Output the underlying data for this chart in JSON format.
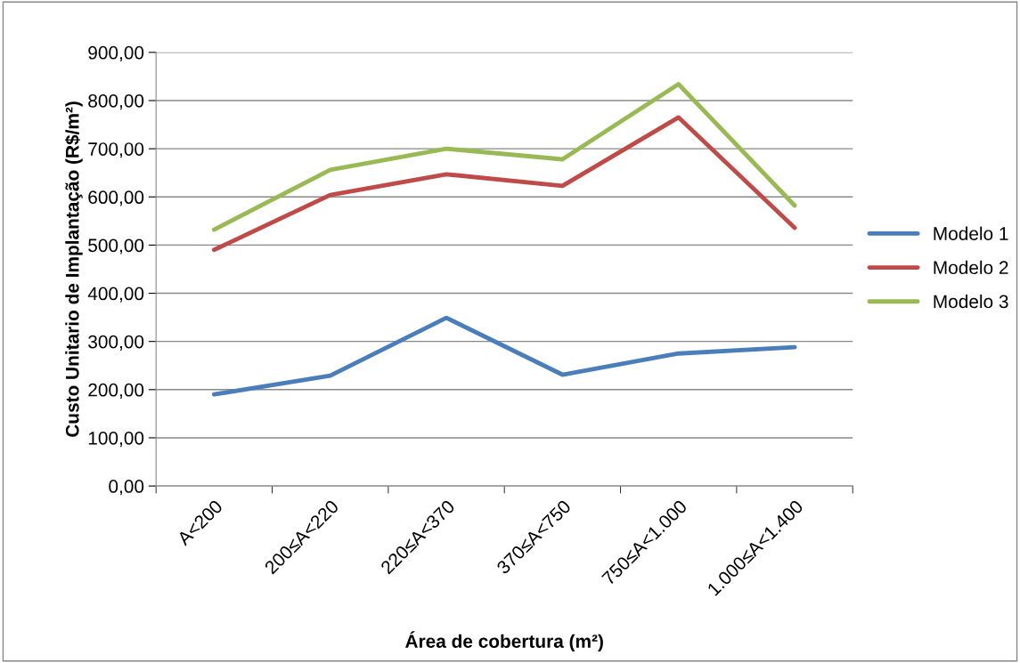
{
  "chart_data": {
    "type": "line",
    "xlabel": "Área de cobertura (m²)",
    "ylabel": "Custo Unitario de Implantação (R$/m²)",
    "categories": [
      "A<200",
      "200≤A<220",
      "220≤A<370",
      "370≤A<750",
      "750≤A<1.000",
      "1.000≤A<1.400"
    ],
    "series": [
      {
        "name": "Modelo 1",
        "color": "#4a7ebb",
        "values": [
          190,
          229,
          349,
          231,
          275,
          288
        ]
      },
      {
        "name": "Modelo 2",
        "color": "#be4b48",
        "values": [
          490,
          604,
          647,
          623,
          765,
          536
        ]
      },
      {
        "name": "Modelo 3",
        "color": "#98b954",
        "values": [
          532,
          656,
          700,
          678,
          834,
          582
        ]
      }
    ],
    "ylim": [
      0,
      900
    ],
    "yticks": [
      {
        "value": 0,
        "label": "0,00"
      },
      {
        "value": 100,
        "label": "100,00"
      },
      {
        "value": 200,
        "label": "200,00"
      },
      {
        "value": 300,
        "label": "300,00"
      },
      {
        "value": 400,
        "label": "400,00"
      },
      {
        "value": 500,
        "label": "500,00"
      },
      {
        "value": 600,
        "label": "600,00"
      },
      {
        "value": 700,
        "label": "700,00"
      },
      {
        "value": 800,
        "label": "800,00"
      },
      {
        "value": 900,
        "label": "900,00"
      }
    ],
    "grid": "y",
    "legend": "right",
    "marker": "none",
    "line_style": "solid"
  }
}
